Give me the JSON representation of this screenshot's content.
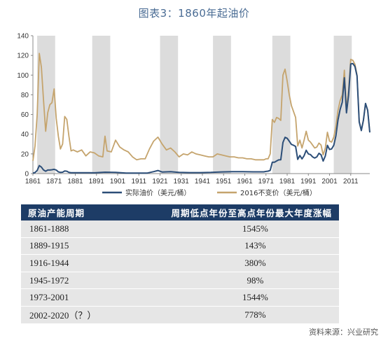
{
  "title": "图表3：1860年起油价",
  "chart_data": {
    "type": "line",
    "xlim": [
      1861,
      2020
    ],
    "ylim": [
      0,
      140
    ],
    "yticks": [
      0,
      20,
      40,
      60,
      80,
      100,
      120,
      140
    ],
    "xticks": [
      1861,
      1871,
      1881,
      1891,
      1901,
      1911,
      1921,
      1931,
      1941,
      1951,
      1961,
      1971,
      1981,
      1991,
      2001,
      2011
    ],
    "grid": false,
    "legend_position": "bottom",
    "shaded_periods": [
      [
        1889,
        1915
      ],
      [
        1916,
        1944
      ],
      [
        1945,
        1972
      ],
      [
        1973,
        2001
      ],
      [
        2002,
        2020
      ]
    ],
    "series": [
      {
        "name": "实际油价（美元/桶）",
        "color": "#2c4e78",
        "x": [
          1861,
          1862,
          1863,
          1864,
          1865,
          1866,
          1867,
          1868,
          1869,
          1870,
          1871,
          1872,
          1873,
          1874,
          1875,
          1876,
          1877,
          1878,
          1879,
          1880,
          1885,
          1890,
          1895,
          1900,
          1905,
          1910,
          1915,
          1918,
          1920,
          1922,
          1926,
          1930,
          1935,
          1940,
          1945,
          1950,
          1955,
          1960,
          1965,
          1970,
          1971,
          1972,
          1973,
          1974,
          1975,
          1976,
          1977,
          1978,
          1979,
          1980,
          1981,
          1982,
          1983,
          1984,
          1985,
          1986,
          1987,
          1988,
          1989,
          1990,
          1991,
          1992,
          1993,
          1994,
          1995,
          1996,
          1997,
          1998,
          1999,
          2000,
          2001,
          2002,
          2003,
          2004,
          2005,
          2006,
          2007,
          2008,
          2009,
          2010,
          2011,
          2012,
          2013,
          2014,
          2015,
          2016,
          2017,
          2018,
          2019,
          2020
        ],
        "values": [
          0.5,
          1.1,
          3.2,
          8.1,
          6.6,
          3.7,
          2.4,
          3.6,
          3.6,
          3.9,
          4.3,
          3.6,
          1.8,
          1.2,
          1.4,
          2.6,
          2.4,
          1.2,
          0.9,
          0.9,
          0.9,
          0.8,
          1.4,
          1.2,
          0.6,
          0.6,
          0.6,
          2.0,
          3.1,
          1.6,
          1.9,
          1.2,
          1.0,
          1.0,
          1.2,
          1.7,
          1.9,
          1.9,
          1.8,
          1.8,
          2.2,
          2.5,
          3.3,
          11.6,
          11.5,
          12.8,
          13.9,
          14.0,
          31.6,
          36.8,
          35.9,
          32.9,
          29.6,
          28.8,
          27.6,
          14.4,
          18.4,
          14.9,
          18.2,
          23.7,
          20.0,
          19.3,
          17.0,
          15.8,
          17.0,
          20.6,
          19.1,
          12.7,
          17.9,
          28.7,
          24.5,
          25.0,
          28.8,
          38.3,
          54.5,
          65.1,
          72.4,
          97.3,
          61.7,
          79.5,
          111.3,
          111.7,
          108.7,
          99.0,
          52.4,
          43.7,
          54.2,
          71.3,
          64.2,
          41.8
        ]
      },
      {
        "name": "2016不变价（美元/桶）",
        "color": "#c5a46d",
        "x": [
          1861,
          1862,
          1863,
          1864,
          1865,
          1866,
          1867,
          1868,
          1869,
          1870,
          1871,
          1872,
          1873,
          1874,
          1875,
          1876,
          1877,
          1878,
          1879,
          1880,
          1882,
          1884,
          1886,
          1888,
          1890,
          1892,
          1894,
          1895,
          1896,
          1898,
          1900,
          1902,
          1904,
          1906,
          1908,
          1910,
          1912,
          1914,
          1916,
          1918,
          1920,
          1922,
          1924,
          1926,
          1928,
          1930,
          1932,
          1934,
          1936,
          1938,
          1940,
          1942,
          1944,
          1946,
          1948,
          1950,
          1952,
          1954,
          1956,
          1958,
          1960,
          1962,
          1964,
          1966,
          1968,
          1970,
          1971,
          1972,
          1973,
          1974,
          1975,
          1976,
          1977,
          1978,
          1979,
          1980,
          1981,
          1982,
          1983,
          1984,
          1985,
          1986,
          1987,
          1988,
          1989,
          1990,
          1991,
          1992,
          1993,
          1994,
          1995,
          1996,
          1997,
          1998,
          1999,
          2000,
          2001,
          2002,
          2003,
          2004,
          2005,
          2006,
          2007,
          2008,
          2009,
          2010,
          2011,
          2012,
          2013,
          2014,
          2015,
          2016,
          2017,
          2018,
          2019,
          2020
        ],
        "values": [
          13,
          28,
          60,
          122,
          108,
          75,
          43,
          62,
          70,
          72,
          86,
          56,
          38,
          25,
          30,
          58,
          55,
          38,
          23,
          24,
          22,
          24,
          18,
          22,
          21,
          18,
          17,
          38,
          23,
          22,
          34,
          27,
          24,
          22,
          17,
          14,
          15,
          15,
          25,
          33,
          37,
          30,
          24,
          26,
          22,
          17,
          20,
          19,
          22,
          20,
          19,
          18,
          17,
          17,
          20,
          19,
          18,
          17,
          17,
          16,
          16,
          15,
          15,
          14,
          14,
          14,
          15,
          15,
          20,
          55,
          52,
          57,
          56,
          54,
          100,
          106,
          94,
          80,
          69,
          63,
          57,
          28,
          34,
          26,
          34,
          43,
          34,
          32,
          29,
          26,
          27,
          31,
          29,
          19,
          26,
          42,
          33,
          32,
          37,
          48,
          64,
          74,
          80,
          105,
          66,
          84,
          116,
          115,
          111,
          100,
          53,
          44,
          54,
          71,
          64,
          42
        ]
      }
    ]
  },
  "table": {
    "headers": [
      "原油产能周期",
      "周期低点年份至高点年份最大年度涨幅"
    ],
    "rows": [
      {
        "period": "1861-1888",
        "gain": "1545%"
      },
      {
        "period": "1889-1915",
        "gain": "143%"
      },
      {
        "period": "1916-1944",
        "gain": "380%"
      },
      {
        "period": "1945-1972",
        "gain": "98%"
      },
      {
        "period": "1973-2001",
        "gain": "1544%"
      },
      {
        "period": "2002-2020（？）",
        "gain": "778%"
      }
    ]
  },
  "source": "资料来源：兴业研究"
}
